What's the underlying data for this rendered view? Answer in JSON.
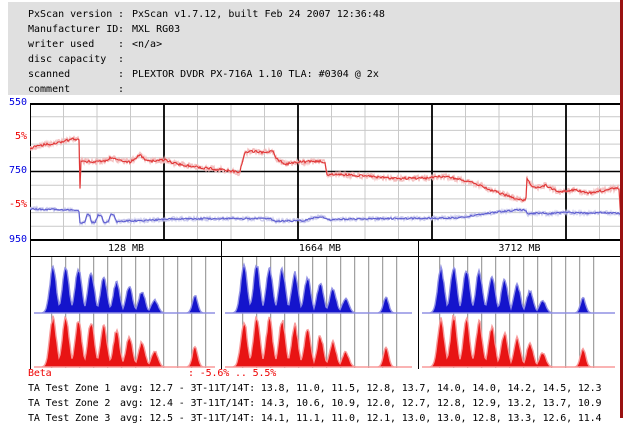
{
  "ui": {
    "colon": ":"
  },
  "colors": {
    "panel_bg": "#e0e0e0",
    "grid": "#c9c9c9",
    "axis_black": "#000000",
    "maroon_border": "#991111",
    "blue_label": "#0000e0",
    "red_label": "#ee0000"
  },
  "header": {
    "rows": [
      {
        "label": "PxScan version",
        "value": "PxScan v1.7.12, built Feb 24 2007 12:36:48"
      },
      {
        "label": "Manufacturer ID",
        "value": "MXL RG03"
      },
      {
        "label": "writer used",
        "value": "<n/a>"
      },
      {
        "label": "disc capacity",
        "value": ""
      },
      {
        "label": "scanned",
        "value": "PLEXTOR DVDR PX-716A 1.10 TLA: #0304 @ 2x"
      },
      {
        "label": "comment",
        "value": ""
      }
    ]
  },
  "chart_data": [
    {
      "type": "line",
      "title": "beta (red) and TA average (blue) across disc",
      "x_axis": {
        "unit": "MB",
        "max": 4516,
        "gray_grid_step": 256,
        "black_grid_step": 1024
      },
      "left_ticks": [
        {
          "text": "550",
          "color": "#0000e0"
        },
        {
          "text": "5%",
          "color": "#ee0000"
        },
        {
          "text": "750",
          "color": "#0000e0"
        },
        {
          "text": "-5%",
          "color": "#ee0000"
        },
        {
          "text": "950",
          "color": "#0000e0"
        }
      ],
      "red_axis": {
        "label": "beta %",
        "top": 10,
        "bottom": -10
      },
      "blue_axis": {
        "label": "TA",
        "top": 550,
        "bottom": 950
      },
      "series": [
        {
          "name": "beta",
          "axis": "red",
          "color": "#e03434",
          "fuzz_color": "#f3b9b9",
          "points": [
            [
              0,
              3.3
            ],
            [
              60,
              3.8
            ],
            [
              150,
              4.0
            ],
            [
              230,
              4.3
            ],
            [
              300,
              4.6
            ],
            [
              330,
              4.8
            ],
            [
              360,
              4.7
            ],
            [
              376,
              4.5
            ],
            [
              379,
              1.8
            ],
            [
              381,
              -6.8
            ],
            [
              383,
              1.6
            ],
            [
              420,
              1.5
            ],
            [
              500,
              1.4
            ],
            [
              575,
              1.5
            ],
            [
              610,
              2.0
            ],
            [
              700,
              1.6
            ],
            [
              765,
              1.4
            ],
            [
              840,
              2.4
            ],
            [
              880,
              1.8
            ],
            [
              915,
              1.5
            ],
            [
              1030,
              1.7
            ],
            [
              1100,
              1.2
            ],
            [
              1185,
              0.9
            ],
            [
              1340,
              0.5
            ],
            [
              1490,
              0.2
            ],
            [
              1570,
              0.0
            ],
            [
              1600,
              -0.3
            ],
            [
              1640,
              2.6
            ],
            [
              1680,
              3.0
            ],
            [
              1780,
              2.8
            ],
            [
              1860,
              2.9
            ],
            [
              1885,
              1.8
            ],
            [
              1950,
              1.1
            ],
            [
              2000,
              1.2
            ],
            [
              2060,
              1.4
            ],
            [
              2215,
              1.5
            ],
            [
              2255,
              1.4
            ],
            [
              2268,
              -0.4
            ],
            [
              2340,
              -0.4
            ],
            [
              2500,
              -0.6
            ],
            [
              2600,
              -0.7
            ],
            [
              2700,
              -0.9
            ],
            [
              2830,
              -1.0
            ],
            [
              3000,
              -1.0
            ],
            [
              3100,
              -0.8
            ],
            [
              3170,
              -0.7
            ],
            [
              3285,
              -1.2
            ],
            [
              3360,
              -1.5
            ],
            [
              3440,
              -2.0
            ],
            [
              3515,
              -2.7
            ],
            [
              3630,
              -3.4
            ],
            [
              3705,
              -3.9
            ],
            [
              3770,
              -4.3
            ],
            [
              3790,
              -4.0
            ],
            [
              3795,
              -0.9
            ],
            [
              3820,
              -1.8
            ],
            [
              3860,
              -2.4
            ],
            [
              3935,
              -2.0
            ],
            [
              4000,
              -2.6
            ],
            [
              4050,
              -3.0
            ],
            [
              4120,
              -2.8
            ],
            [
              4165,
              -2.7
            ],
            [
              4230,
              -3.0
            ],
            [
              4280,
              -3.1
            ],
            [
              4340,
              -2.9
            ],
            [
              4395,
              -2.7
            ],
            [
              4460,
              -2.5
            ],
            [
              4495,
              -2.4
            ],
            [
              4505,
              -2.6
            ],
            [
              4512,
              -7.5
            ]
          ]
        },
        {
          "name": "ta",
          "axis": "blue",
          "color": "#5c5cd0",
          "fuzz_color": "#c6c6ec",
          "points": [
            [
              0,
              859
            ],
            [
              200,
              861
            ],
            [
              350,
              864
            ],
            [
              378,
              866
            ],
            [
              382,
              900
            ],
            [
              420,
              899
            ],
            [
              435,
              875
            ],
            [
              455,
              876
            ],
            [
              470,
              898
            ],
            [
              500,
              898
            ],
            [
              520,
              877
            ],
            [
              545,
              877
            ],
            [
              560,
              898
            ],
            [
              600,
              897
            ],
            [
              618,
              874
            ],
            [
              640,
              875
            ],
            [
              660,
              897
            ],
            [
              700,
              895
            ],
            [
              800,
              894
            ],
            [
              900,
              893
            ],
            [
              1020,
              890
            ],
            [
              1100,
              888
            ],
            [
              1300,
              888
            ],
            [
              1500,
              887
            ],
            [
              1700,
              888
            ],
            [
              1840,
              888
            ],
            [
              1870,
              895
            ],
            [
              1950,
              894
            ],
            [
              2100,
              893
            ],
            [
              2180,
              884
            ],
            [
              2230,
              883
            ],
            [
              2300,
              891
            ],
            [
              2400,
              889
            ],
            [
              2600,
              888
            ],
            [
              2800,
              887
            ],
            [
              3000,
              887
            ],
            [
              3200,
              886
            ],
            [
              3300,
              884
            ],
            [
              3400,
              878
            ],
            [
              3500,
              872
            ],
            [
              3600,
              867
            ],
            [
              3700,
              863
            ],
            [
              3740,
              862
            ],
            [
              3790,
              863
            ],
            [
              3800,
              875
            ],
            [
              3850,
              872
            ],
            [
              3900,
              871
            ],
            [
              3950,
              873
            ],
            [
              4000,
              872
            ],
            [
              4100,
              869
            ],
            [
              4150,
              870
            ],
            [
              4250,
              872
            ],
            [
              4350,
              870
            ],
            [
              4450,
              871
            ],
            [
              4516,
              873
            ]
          ]
        }
      ]
    },
    {
      "type": "histogram",
      "title": "TA test zone pit/land length distributions (3T-11T, 14T)",
      "row_colors": {
        "top": "#1414cc",
        "top_fringe": "#9090e4",
        "bottom": "#e81414",
        "bottom_fringe": "#f89a9a"
      },
      "beta_range": "-5.6% .. 5.5%",
      "zones": [
        {
          "label": "128 MB",
          "avg": 12.7,
          "t_values": [
            13.8,
            11.0,
            11.5,
            12.8,
            13.7,
            14.0,
            14.0,
            14.2,
            14.5
          ],
          "t14": 12.3,
          "blue_heights": [
            94,
            95,
            91,
            83,
            74,
            65,
            55,
            45,
            27
          ],
          "blue_h14": 37,
          "red_heights": [
            95,
            100,
            92,
            88,
            80,
            70,
            59,
            49,
            31
          ],
          "red_h14": 41
        },
        {
          "label": "1664 MB",
          "avg": 12.4,
          "t_values": [
            14.3,
            10.6,
            10.9,
            12.0,
            12.7,
            12.8,
            12.9,
            13.2,
            13.7
          ],
          "t14": 10.9,
          "blue_heights": [
            100,
            98,
            95,
            90,
            83,
            74,
            62,
            51,
            30
          ],
          "blue_h14": 34,
          "red_heights": [
            88,
            97,
            93,
            89,
            82,
            72,
            60,
            49,
            29
          ],
          "red_h14": 38
        },
        {
          "label": "3712 MB",
          "avg": 12.5,
          "t_values": [
            14.1,
            11.1,
            11.0,
            12.1,
            13.0,
            13.0,
            12.8,
            13.3,
            12.6
          ],
          "t14": 11.4,
          "blue_heights": [
            92,
            94,
            91,
            86,
            78,
            69,
            59,
            46,
            26
          ],
          "blue_h14": 32,
          "red_heights": [
            93,
            98,
            91,
            86,
            77,
            66,
            56,
            47,
            27
          ],
          "red_h14": 36
        }
      ]
    }
  ],
  "footer": {
    "beta": {
      "label": "Beta",
      "value": "-5.6% .. 5.5%"
    },
    "ta_rows": [
      {
        "label": "TA Test Zone 1",
        "value": "avg: 12.7 - 3T-11T/14T: 13.8, 11.0, 11.5, 12.8, 13.7, 14.0, 14.0, 14.2, 14.5, 12.3"
      },
      {
        "label": "TA Test Zone 2",
        "value": "avg: 12.4 - 3T-11T/14T: 14.3, 10.6, 10.9, 12.0, 12.7, 12.8, 12.9, 13.2, 13.7, 10.9"
      },
      {
        "label": "TA Test Zone 3",
        "value": "avg: 12.5 - 3T-11T/14T: 14.1, 11.1, 11.0, 12.1, 13.0, 13.0, 12.8, 13.3, 12.6, 11.4"
      }
    ]
  }
}
